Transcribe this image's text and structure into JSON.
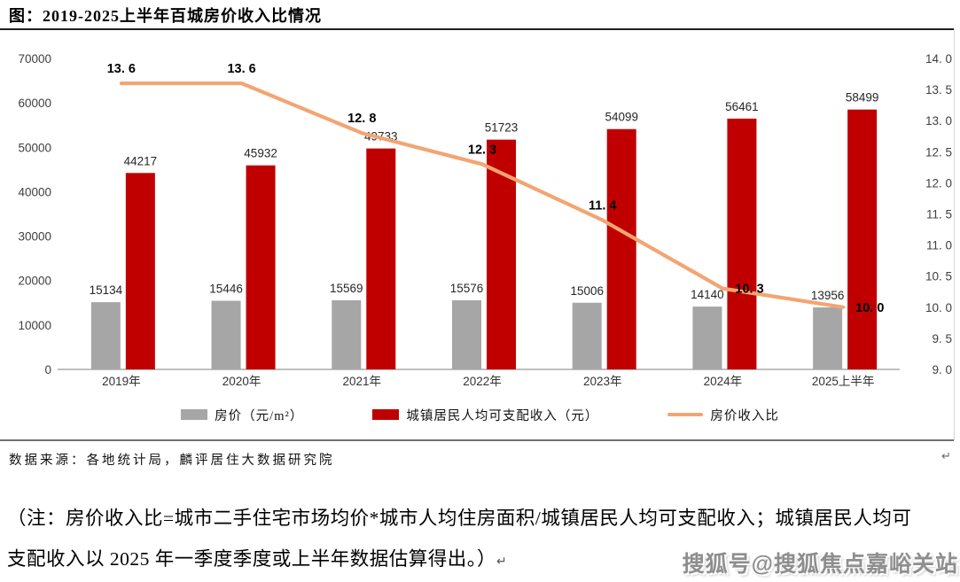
{
  "title": "图：2019-2025上半年百城房价收入比情况",
  "chart_data": {
    "type": "combo-bar-line",
    "categories": [
      "2019年",
      "2020年",
      "2021年",
      "2022年",
      "2023年",
      "2024年",
      "2025上半年"
    ],
    "series": [
      {
        "name": "房价（元/m²）",
        "type": "bar",
        "color": "#A6A6A6",
        "axis": "left",
        "values": [
          15134,
          15446,
          15569,
          15576,
          15006,
          14140,
          13956
        ]
      },
      {
        "name": "城镇居民人均可支配收入（元）",
        "type": "bar",
        "color": "#C00000",
        "axis": "left",
        "values": [
          44217,
          45932,
          49733,
          51723,
          54099,
          56461,
          58499
        ]
      },
      {
        "name": "房价收入比",
        "type": "line",
        "color": "#F2A572",
        "axis": "right",
        "values": [
          13.6,
          13.6,
          12.8,
          12.3,
          11.4,
          10.3,
          10.0
        ],
        "point_labels": [
          "13. 6",
          "13. 6",
          "12. 8",
          "12. 3",
          "11. 4",
          "10. 3",
          "10. 0"
        ]
      }
    ],
    "left_axis": {
      "min": 0,
      "max": 70000,
      "tick_values": [
        0,
        10000,
        20000,
        30000,
        40000,
        50000,
        60000,
        70000
      ],
      "tick_labels": [
        "0",
        "10000",
        "20000",
        "30000",
        "40000",
        "50000",
        "60000",
        "70000"
      ]
    },
    "right_axis": {
      "min": 9.0,
      "max": 14.0,
      "tick_values": [
        9,
        9.5,
        10,
        10.5,
        11,
        11.5,
        12,
        12.5,
        13,
        13.5,
        14
      ],
      "tick_labels": [
        "9. 0",
        "9. 5",
        "10. 0",
        "10. 5",
        "11. 0",
        "11. 5",
        "12. 0",
        "12. 5",
        "13. 0",
        "13. 5",
        "14. 0"
      ]
    },
    "grid": false,
    "legend_position": "bottom"
  },
  "legend": [
    {
      "label": "房价（元/m²）",
      "swatch": "gray-bar"
    },
    {
      "label": "城镇居民人均可支配收入（元）",
      "swatch": "red-bar"
    },
    {
      "label": "房价收入比",
      "swatch": "orange-line"
    }
  ],
  "source": "数据来源：各地统计局，麟评居住大数据研究院",
  "note": {
    "line1": "（注：房价收入比=城市二手住宅市场均价*城市人均住房面积/城镇居民人均可支配收入；城镇居民人均可",
    "line2": "支配收入以 2025 年一季度季度或上半年数据估算得出。）"
  },
  "paragraph_mark": "↵",
  "watermark": "搜狐号@搜狐焦点嘉峪关站",
  "colors": {
    "bar_gray": "#A6A6A6",
    "bar_red": "#C00000",
    "line_orange": "#F2A572",
    "axis_text": "#404040",
    "rule_dark": "#1f1f1f",
    "rule_gray": "#6f6f6f"
  }
}
